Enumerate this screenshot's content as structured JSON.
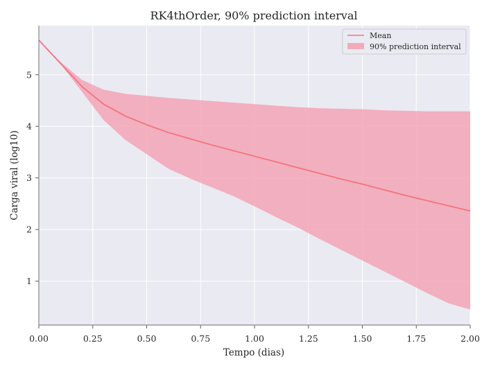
{
  "chart_data": {
    "type": "area",
    "title": "RK4thOrder, 90% prediction interval",
    "xlabel": "Tempo (dias)",
    "ylabel": "Carga viral (log10)",
    "xlim": [
      0.0,
      2.0
    ],
    "ylim": [
      0.15,
      5.95
    ],
    "xticks": [
      "0.00",
      "0.25",
      "0.50",
      "0.75",
      "1.00",
      "1.25",
      "1.50",
      "1.75",
      "2.00"
    ],
    "yticks": [
      "1",
      "2",
      "3",
      "4",
      "5"
    ],
    "grid": true,
    "legend_position": "top-right",
    "x": [
      0.0,
      0.1,
      0.2,
      0.3,
      0.4,
      0.5,
      0.6,
      0.7,
      0.8,
      0.9,
      1.0,
      1.1,
      1.2,
      1.3,
      1.4,
      1.5,
      1.6,
      1.7,
      1.8,
      1.9,
      2.0
    ],
    "series": [
      {
        "name": "Mean",
        "kind": "line",
        "color": "#f4727f",
        "values": [
          5.67,
          5.22,
          4.77,
          4.43,
          4.2,
          4.03,
          3.88,
          3.76,
          3.64,
          3.53,
          3.42,
          3.31,
          3.2,
          3.09,
          2.98,
          2.88,
          2.77,
          2.66,
          2.56,
          2.46,
          2.36
        ]
      },
      {
        "name": "90% prediction interval",
        "kind": "band",
        "color": "#f4a0b2",
        "lower": [
          5.67,
          5.21,
          4.67,
          4.12,
          3.74,
          3.46,
          3.18,
          2.99,
          2.82,
          2.65,
          2.45,
          2.24,
          2.04,
          1.82,
          1.61,
          1.4,
          1.19,
          0.98,
          0.77,
          0.57,
          0.45
        ],
        "upper": [
          5.67,
          5.25,
          4.9,
          4.71,
          4.63,
          4.59,
          4.55,
          4.52,
          4.49,
          4.46,
          4.43,
          4.4,
          4.37,
          4.35,
          4.34,
          4.33,
          4.31,
          4.3,
          4.29,
          4.29,
          4.29
        ]
      }
    ]
  }
}
